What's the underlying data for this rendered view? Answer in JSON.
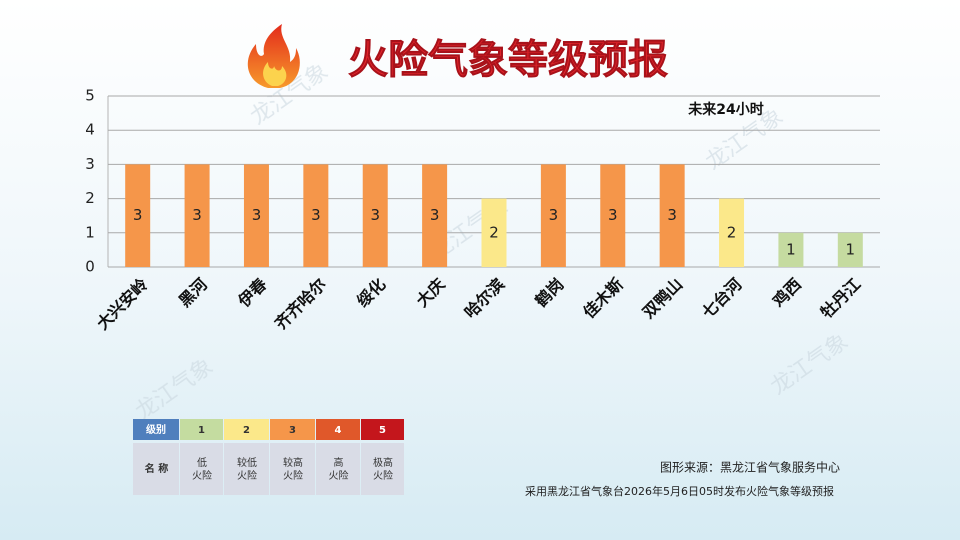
{
  "chart_data": {
    "type": "bar",
    "title": "火险气象等级预报",
    "annotation": "未来24小时",
    "categories": [
      "大兴安岭",
      "黑河",
      "伊春",
      "齐齐哈尔",
      "绥化",
      "大庆",
      "哈尔滨",
      "鹤岗",
      "佳木斯",
      "双鸭山",
      "七台河",
      "鸡西",
      "牡丹江"
    ],
    "values": [
      3,
      3,
      3,
      3,
      3,
      3,
      2,
      3,
      3,
      3,
      2,
      1,
      1
    ],
    "colors": [
      "#f5964a",
      "#f5964a",
      "#f5964a",
      "#f5964a",
      "#f5964a",
      "#f5964a",
      "#fbe88a",
      "#f5964a",
      "#f5964a",
      "#f5964a",
      "#fbe88a",
      "#c5dba0",
      "#c5dba0"
    ],
    "ylim": [
      0,
      5
    ],
    "yticks": [
      0,
      1,
      2,
      3,
      4,
      5
    ],
    "grid": true
  },
  "level_table": {
    "header": [
      "级别",
      "1",
      "2",
      "3",
      "4",
      "5"
    ],
    "header_colors": [
      "#4f7fbd",
      "#c4dca0",
      "#fbe88a",
      "#f5964a",
      "#e0582a",
      "#c4161c"
    ],
    "row_label": "名 称",
    "names": [
      [
        "低",
        "火险"
      ],
      [
        "较低",
        "火险"
      ],
      [
        "较高",
        "火险"
      ],
      [
        "高",
        "火险"
      ],
      [
        "极高",
        "火险"
      ]
    ]
  },
  "source": "图形来源：黑龙江省气象服务中心",
  "note": "采用黑龙江省气象台2026年5月6日05时发布火险气象等级预报",
  "watermark": "龙江气象"
}
